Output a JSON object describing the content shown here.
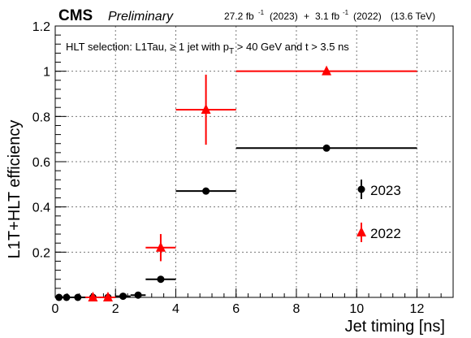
{
  "header": {
    "experiment": "CMS",
    "status": "Preliminary",
    "lumi_2023": "27.2 fb",
    "lumi_2023_year": "(2023)",
    "plus": "+",
    "lumi_2022": "3.1 fb",
    "lumi_2022_year": "(2022)",
    "energy": "(13.6 TeV)",
    "lumi_exponent": "-1"
  },
  "annotation": {
    "prefix": "HLT selection: L1Tau, ≥ 1 jet with p",
    "subscript": "T",
    "suffix": " > 40 GeV and t > 3.5 ns"
  },
  "chart_data": {
    "type": "scatter",
    "xlabel": "Jet timing [ns]",
    "ylabel": "L1T+HLT efficiency",
    "xlim": [
      0,
      13.2
    ],
    "ylim": [
      0,
      1.2
    ],
    "xticks": [
      0,
      2,
      4,
      6,
      8,
      10,
      12
    ],
    "yticks": [
      0.2,
      0.4,
      0.6,
      0.8,
      1,
      1.2
    ],
    "ytick_labels": [
      "0.2",
      "0.4",
      "0.6",
      "0.8",
      "1",
      "1.2"
    ],
    "grid": true,
    "legend_position": "right",
    "series": [
      {
        "name": "2023",
        "color": "#000000",
        "marker": "circle",
        "points": [
          {
            "x": 0.125,
            "y": 0.0,
            "xlo": 0.0,
            "xhi": 0.25,
            "yerr": 0.0
          },
          {
            "x": 0.375,
            "y": 0.0,
            "xlo": 0.25,
            "xhi": 0.5,
            "yerr": 0.0
          },
          {
            "x": 0.75,
            "y": 0.0,
            "xlo": 0.5,
            "xhi": 1.0,
            "yerr": 0.0
          },
          {
            "x": 1.25,
            "y": 0.0,
            "xlo": 1.0,
            "xhi": 1.5,
            "yerr": 0.0
          },
          {
            "x": 1.75,
            "y": 0.0,
            "xlo": 1.5,
            "xhi": 2.0,
            "yerr": 0.0
          },
          {
            "x": 2.25,
            "y": 0.005,
            "xlo": 2.0,
            "xhi": 2.5,
            "yerr": 0.0
          },
          {
            "x": 2.75,
            "y": 0.01,
            "xlo": 2.5,
            "xhi": 3.0,
            "yerr": 0.0
          },
          {
            "x": 3.5,
            "y": 0.08,
            "xlo": 3.0,
            "xhi": 4.0,
            "yerr": 0.01
          },
          {
            "x": 5.0,
            "y": 0.47,
            "xlo": 4.0,
            "xhi": 6.0,
            "yerr": 0.01
          },
          {
            "x": 9.0,
            "y": 0.66,
            "xlo": 6.0,
            "xhi": 12.0,
            "yerr": 0.01
          }
        ]
      },
      {
        "name": "2022",
        "color": "#ff0000",
        "marker": "triangle",
        "points": [
          {
            "x": 1.25,
            "y": 0.0,
            "xlo": 1.0,
            "xhi": 1.5,
            "yerr": 0.0
          },
          {
            "x": 1.75,
            "y": 0.0,
            "xlo": 1.5,
            "xhi": 2.0,
            "yerr": 0.0
          },
          {
            "x": 3.5,
            "y": 0.22,
            "xlo": 3.0,
            "xhi": 4.0,
            "yerr": 0.06
          },
          {
            "x": 5.0,
            "y": 0.83,
            "xlo": 4.0,
            "xhi": 6.0,
            "yerr": 0.155
          },
          {
            "x": 9.0,
            "y": 1.0,
            "xlo": 6.0,
            "xhi": 12.0,
            "yerr": 0.0
          }
        ]
      }
    ]
  }
}
